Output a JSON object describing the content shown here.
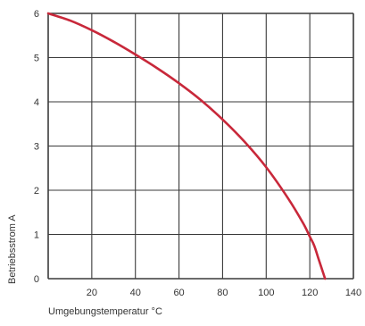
{
  "chart_data": {
    "type": "line",
    "xlabel": "Umgebungstemperatur °C",
    "ylabel": "Betriebsstrom A",
    "xlim": [
      0,
      140
    ],
    "ylim": [
      0,
      6
    ],
    "xticks": [
      20,
      40,
      60,
      80,
      100,
      120,
      140
    ],
    "yticks": [
      0,
      1,
      2,
      3,
      4,
      5,
      6
    ],
    "grid": true,
    "series": [
      {
        "color": "#c8283a",
        "x": [
          0,
          10,
          20,
          30,
          40,
          50,
          60,
          70,
          80,
          90,
          100,
          110,
          117,
          120,
          122,
          124,
          126,
          127
        ],
        "y": [
          6.0,
          5.84,
          5.62,
          5.36,
          5.07,
          4.76,
          4.42,
          4.04,
          3.6,
          3.1,
          2.52,
          1.82,
          1.25,
          0.95,
          0.75,
          0.45,
          0.15,
          0.0
        ]
      }
    ]
  }
}
